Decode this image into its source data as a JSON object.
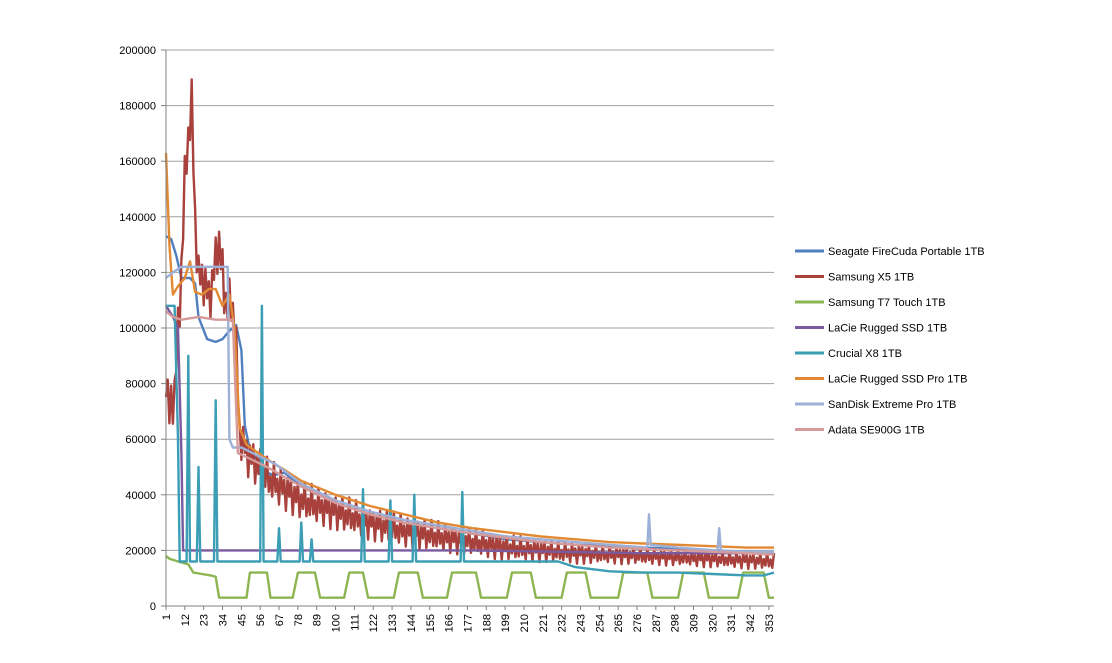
{
  "chart_data": {
    "type": "line",
    "title": "",
    "xlabel": "",
    "ylabel": "",
    "ylim": [
      0,
      200000
    ],
    "y_ticks": [
      0,
      20000,
      40000,
      60000,
      80000,
      100000,
      120000,
      140000,
      160000,
      180000,
      200000
    ],
    "x_range": [
      1,
      356
    ],
    "x_ticks": [
      1,
      12,
      23,
      34,
      45,
      56,
      67,
      78,
      89,
      100,
      111,
      122,
      133,
      144,
      155,
      166,
      177,
      188,
      199,
      210,
      221,
      232,
      243,
      254,
      265,
      276,
      287,
      298,
      309,
      320,
      331,
      342,
      353
    ],
    "grid": "horizontal",
    "legend_position": "right",
    "series": [
      {
        "name": "Seagate FireCuda Portable 1TB",
        "color": "#4f7fbf",
        "points": [
          [
            1,
            133000
          ],
          [
            4,
            132000
          ],
          [
            7,
            126000
          ],
          [
            10,
            118000
          ],
          [
            12,
            118000
          ],
          [
            15,
            118000
          ],
          [
            18,
            116000
          ],
          [
            20,
            104000
          ],
          [
            25,
            96000
          ],
          [
            30,
            95000
          ],
          [
            34,
            96000
          ],
          [
            38,
            99000
          ],
          [
            42,
            101000
          ],
          [
            45,
            92000
          ],
          [
            47,
            65000
          ],
          [
            50,
            56000
          ],
          [
            55,
            52000
          ],
          [
            60,
            48000
          ],
          [
            64,
            47000
          ],
          [
            70,
            48000
          ],
          [
            80,
            43000
          ],
          [
            100,
            37000
          ],
          [
            120,
            33000
          ],
          [
            140,
            30000
          ],
          [
            160,
            28000
          ],
          [
            180,
            26000
          ],
          [
            200,
            24000
          ],
          [
            220,
            23000
          ],
          [
            240,
            22000
          ],
          [
            260,
            21500
          ],
          [
            280,
            21000
          ],
          [
            300,
            20500
          ],
          [
            320,
            20000
          ],
          [
            340,
            19500
          ],
          [
            356,
            19000
          ]
        ]
      },
      {
        "name": "Samsung X5 1TB",
        "color": "#a8403c",
        "noise": 9000,
        "points": [
          [
            1,
            85000
          ],
          [
            3,
            68000
          ],
          [
            6,
            78000
          ],
          [
            9,
            108000
          ],
          [
            12,
            152000
          ],
          [
            14,
            170000
          ],
          [
            16,
            180000
          ],
          [
            18,
            140000
          ],
          [
            20,
            118000
          ],
          [
            23,
            118000
          ],
          [
            26,
            110000
          ],
          [
            29,
            120000
          ],
          [
            32,
            132000
          ],
          [
            35,
            112000
          ],
          [
            38,
            108000
          ],
          [
            41,
            106000
          ],
          [
            44,
            62000
          ],
          [
            48,
            55000
          ],
          [
            55,
            50000
          ],
          [
            60,
            46000
          ],
          [
            70,
            42000
          ],
          [
            80,
            38000
          ],
          [
            100,
            34000
          ],
          [
            120,
            30000
          ],
          [
            140,
            27000
          ],
          [
            160,
            25000
          ],
          [
            180,
            23000
          ],
          [
            200,
            21000
          ],
          [
            220,
            20000
          ],
          [
            240,
            19000
          ],
          [
            260,
            18500
          ],
          [
            280,
            18000
          ],
          [
            300,
            17500
          ],
          [
            320,
            17000
          ],
          [
            340,
            16500
          ],
          [
            356,
            16000
          ]
        ]
      },
      {
        "name": "Samsung T7 Touch 1TB",
        "color": "#8db552",
        "points": [
          [
            1,
            18000
          ],
          [
            3,
            17000
          ],
          [
            8,
            16000
          ],
          [
            14,
            15000
          ],
          [
            17,
            12000
          ],
          [
            22,
            11500
          ],
          [
            27,
            11000
          ],
          [
            30,
            10500
          ],
          [
            32,
            3000
          ],
          [
            38,
            3000
          ],
          [
            48,
            3000
          ],
          [
            50,
            12000
          ],
          [
            60,
            12000
          ],
          [
            62,
            3000
          ],
          [
            75,
            3000
          ],
          [
            78,
            12000
          ],
          [
            88,
            12000
          ],
          [
            91,
            3000
          ],
          [
            105,
            3000
          ],
          [
            108,
            12000
          ],
          [
            116,
            12000
          ],
          [
            119,
            3000
          ],
          [
            134,
            3000
          ],
          [
            137,
            12000
          ],
          [
            148,
            12000
          ],
          [
            151,
            3000
          ],
          [
            165,
            3000
          ],
          [
            168,
            12000
          ],
          [
            182,
            12000
          ],
          [
            185,
            3000
          ],
          [
            200,
            3000
          ],
          [
            203,
            12000
          ],
          [
            214,
            12000
          ],
          [
            217,
            3000
          ],
          [
            232,
            3000
          ],
          [
            235,
            12000
          ],
          [
            246,
            12000
          ],
          [
            249,
            3000
          ],
          [
            265,
            3000
          ],
          [
            268,
            12000
          ],
          [
            282,
            12000
          ],
          [
            285,
            3000
          ],
          [
            300,
            3000
          ],
          [
            303,
            12000
          ],
          [
            315,
            12000
          ],
          [
            318,
            3000
          ],
          [
            335,
            3000
          ],
          [
            338,
            12000
          ],
          [
            350,
            12000
          ],
          [
            353,
            3000
          ],
          [
            356,
            3000
          ]
        ]
      },
      {
        "name": "LaCie Rugged SSD 1TB",
        "color": "#7a5a9e",
        "points": [
          [
            1,
            108000
          ],
          [
            5,
            104000
          ],
          [
            8,
            100000
          ],
          [
            10,
            55000
          ],
          [
            11,
            20000
          ],
          [
            30,
            20000
          ],
          [
            80,
            20000
          ],
          [
            130,
            20000
          ],
          [
            180,
            20000
          ],
          [
            230,
            19500
          ],
          [
            280,
            19000
          ],
          [
            356,
            19000
          ]
        ]
      },
      {
        "name": "Crucial X8 1TB",
        "color": "#3b9eb5",
        "points": [
          [
            1,
            108000
          ],
          [
            6,
            108000
          ],
          [
            8,
            60000
          ],
          [
            9,
            16000
          ],
          [
            13,
            16000
          ],
          [
            14,
            90000
          ],
          [
            15,
            16000
          ],
          [
            19,
            16000
          ],
          [
            20,
            50000
          ],
          [
            21,
            16000
          ],
          [
            29,
            16000
          ],
          [
            30,
            74000
          ],
          [
            31,
            16000
          ],
          [
            56,
            16000
          ],
          [
            57,
            108000
          ],
          [
            58,
            16000
          ],
          [
            66,
            16000
          ],
          [
            67,
            28000
          ],
          [
            68,
            16000
          ],
          [
            79,
            16000
          ],
          [
            80,
            30000
          ],
          [
            81,
            16000
          ],
          [
            85,
            16000
          ],
          [
            86,
            24000
          ],
          [
            87,
            16000
          ],
          [
            115,
            16000
          ],
          [
            116,
            42000
          ],
          [
            117,
            16000
          ],
          [
            131,
            16000
          ],
          [
            132,
            38000
          ],
          [
            133,
            16000
          ],
          [
            145,
            16000
          ],
          [
            146,
            40000
          ],
          [
            147,
            16000
          ],
          [
            173,
            16000
          ],
          [
            174,
            41000
          ],
          [
            175,
            16000
          ],
          [
            230,
            16000
          ],
          [
            240,
            14000
          ],
          [
            260,
            12500
          ],
          [
            280,
            12000
          ],
          [
            300,
            12000
          ],
          [
            320,
            11500
          ],
          [
            340,
            11000
          ],
          [
            350,
            11000
          ],
          [
            356,
            12000
          ]
        ]
      },
      {
        "name": "LaCie Rugged SSD Pro 1TB",
        "color": "#e28a33",
        "points": [
          [
            1,
            163000
          ],
          [
            3,
            130000
          ],
          [
            5,
            112000
          ],
          [
            8,
            115000
          ],
          [
            12,
            118000
          ],
          [
            15,
            124000
          ],
          [
            18,
            113000
          ],
          [
            22,
            112000
          ],
          [
            26,
            114000
          ],
          [
            30,
            114000
          ],
          [
            34,
            108000
          ],
          [
            38,
            112000
          ],
          [
            41,
            100000
          ],
          [
            44,
            64000
          ],
          [
            48,
            58000
          ],
          [
            55,
            55000
          ],
          [
            62,
            52000
          ],
          [
            70,
            49000
          ],
          [
            80,
            45000
          ],
          [
            100,
            40000
          ],
          [
            120,
            36000
          ],
          [
            140,
            33000
          ],
          [
            160,
            30000
          ],
          [
            180,
            28000
          ],
          [
            200,
            26500
          ],
          [
            220,
            25000
          ],
          [
            240,
            24000
          ],
          [
            260,
            23000
          ],
          [
            280,
            22500
          ],
          [
            300,
            22000
          ],
          [
            320,
            21500
          ],
          [
            340,
            21000
          ],
          [
            356,
            21000
          ]
        ]
      },
      {
        "name": "SanDisk Extreme Pro 1TB",
        "color": "#9cb0d8",
        "points": [
          [
            1,
            118000
          ],
          [
            5,
            120000
          ],
          [
            10,
            122000
          ],
          [
            20,
            122000
          ],
          [
            30,
            122000
          ],
          [
            37,
            122000
          ],
          [
            38,
            60000
          ],
          [
            40,
            57000
          ],
          [
            45,
            57000
          ],
          [
            55,
            54000
          ],
          [
            65,
            51000
          ],
          [
            80,
            44000
          ],
          [
            100,
            38000
          ],
          [
            120,
            34000
          ],
          [
            140,
            31000
          ],
          [
            160,
            29000
          ],
          [
            180,
            27000
          ],
          [
            200,
            25000
          ],
          [
            220,
            24000
          ],
          [
            240,
            23000
          ],
          [
            260,
            22000
          ],
          [
            282,
            21000
          ],
          [
            283,
            33000
          ],
          [
            284,
            22000
          ],
          [
            300,
            21000
          ],
          [
            323,
            20000
          ],
          [
            324,
            28000
          ],
          [
            325,
            20000
          ],
          [
            340,
            19500
          ],
          [
            356,
            19500
          ]
        ]
      },
      {
        "name": "Adata SE900G 1TB",
        "color": "#d79a9a",
        "points": [
          [
            1,
            106000
          ],
          [
            5,
            104000
          ],
          [
            10,
            103000
          ],
          [
            20,
            104000
          ],
          [
            30,
            103000
          ],
          [
            40,
            103000
          ],
          [
            43,
            55000
          ],
          [
            50,
            53000
          ],
          [
            60,
            50000
          ],
          [
            80,
            43000
          ],
          [
            100,
            37000
          ],
          [
            120,
            33000
          ],
          [
            140,
            30000
          ],
          [
            160,
            28000
          ],
          [
            180,
            26000
          ],
          [
            200,
            24500
          ],
          [
            220,
            23000
          ],
          [
            240,
            22000
          ],
          [
            260,
            21000
          ],
          [
            280,
            20500
          ],
          [
            300,
            20000
          ],
          [
            320,
            19500
          ],
          [
            340,
            19000
          ],
          [
            356,
            18500
          ]
        ]
      }
    ]
  }
}
